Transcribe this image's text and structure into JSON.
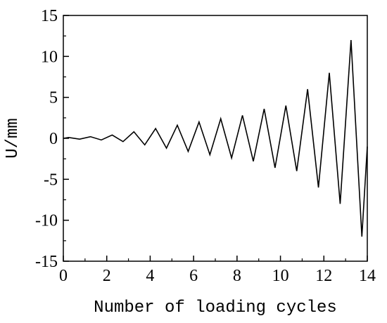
{
  "chart_data": {
    "type": "line",
    "title": "",
    "xlabel": "Number of loading cycles",
    "ylabel": "U/mm",
    "xlim": [
      0,
      14
    ],
    "ylim": [
      -15,
      15
    ],
    "grid": false,
    "legend": "none",
    "line_color": "#000000",
    "x_ticks": [
      0,
      2,
      4,
      6,
      8,
      10,
      12,
      14
    ],
    "x_tick_labels": [
      "0",
      "2",
      "4",
      "6",
      "8",
      "10",
      "12",
      "14"
    ],
    "y_ticks": [
      -15,
      -10,
      -5,
      0,
      5,
      10,
      15
    ],
    "y_tick_labels": [
      "-15",
      "-10",
      "-5",
      "0",
      "5",
      "10",
      "15"
    ],
    "x_minor_ticks": [
      1,
      3,
      5,
      7,
      9,
      11,
      13
    ],
    "y_minor_ticks": [
      -12.5,
      -7.5,
      -2.5,
      2.5,
      7.5,
      12.5
    ],
    "series": [
      {
        "x": [
          0,
          0.25,
          0.75,
          1.25,
          1.75,
          2.25,
          2.75,
          3.25,
          3.75,
          4.25,
          4.75,
          5.25,
          5.75,
          6.25,
          6.75,
          7.25,
          7.75,
          8.25,
          8.75,
          9.25,
          9.75,
          10.25,
          10.75,
          11.25,
          11.75,
          12.25,
          12.75,
          13.25,
          13.75,
          14
        ],
        "y": [
          0,
          0.1,
          -0.1,
          0.2,
          -0.2,
          0.4,
          -0.4,
          0.8,
          -0.8,
          1.2,
          -1.2,
          1.6,
          -1.6,
          2.0,
          -2.0,
          2.4,
          -2.4,
          2.8,
          -2.8,
          3.6,
          -3.6,
          4.0,
          -4.0,
          6.0,
          -6.0,
          8.0,
          -8.0,
          12.0,
          -12.0,
          -1.0
        ]
      }
    ]
  }
}
